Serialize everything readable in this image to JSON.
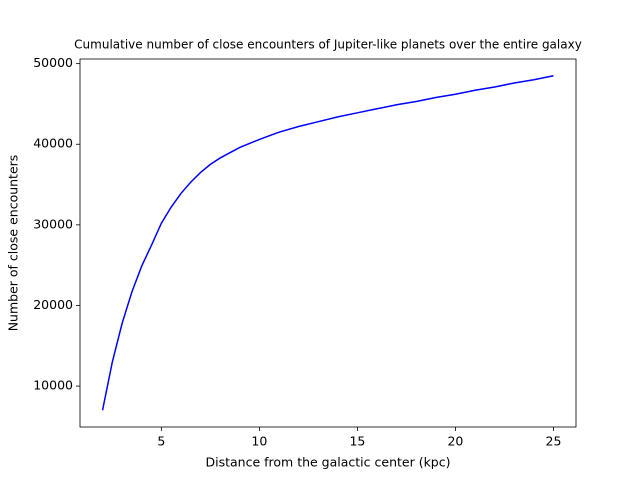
{
  "chart_data": {
    "type": "line",
    "title": "Cumulative number of close encounters of Jupiter-like planets over the entire galaxy",
    "x_label": "Distance from the galactic center (kpc)",
    "y_label": "Number of close encounters",
    "x": [
      2,
      2.5,
      3,
      3.5,
      4,
      4.5,
      5,
      5.5,
      6,
      6.5,
      7,
      7.5,
      8,
      9,
      10,
      11,
      12,
      13,
      14,
      15,
      16,
      17,
      18,
      19,
      20,
      21,
      22,
      23,
      24,
      25
    ],
    "values": [
      7000,
      13000,
      17800,
      21700,
      24900,
      27500,
      30200,
      32200,
      33900,
      35300,
      36500,
      37500,
      38300,
      39600,
      40600,
      41500,
      42200,
      42800,
      43400,
      43900,
      44400,
      44900,
      45300,
      45800,
      46200,
      46700,
      47100,
      47600,
      48000,
      48500
    ],
    "color": "#0000ff",
    "xlim": [
      0.85,
      26.15
    ],
    "xticks": [
      5,
      10,
      15,
      20,
      25
    ],
    "ylim": [
      4925,
      50575
    ],
    "yticks": [
      10000,
      20000,
      30000,
      40000,
      50000
    ],
    "grid": false
  }
}
